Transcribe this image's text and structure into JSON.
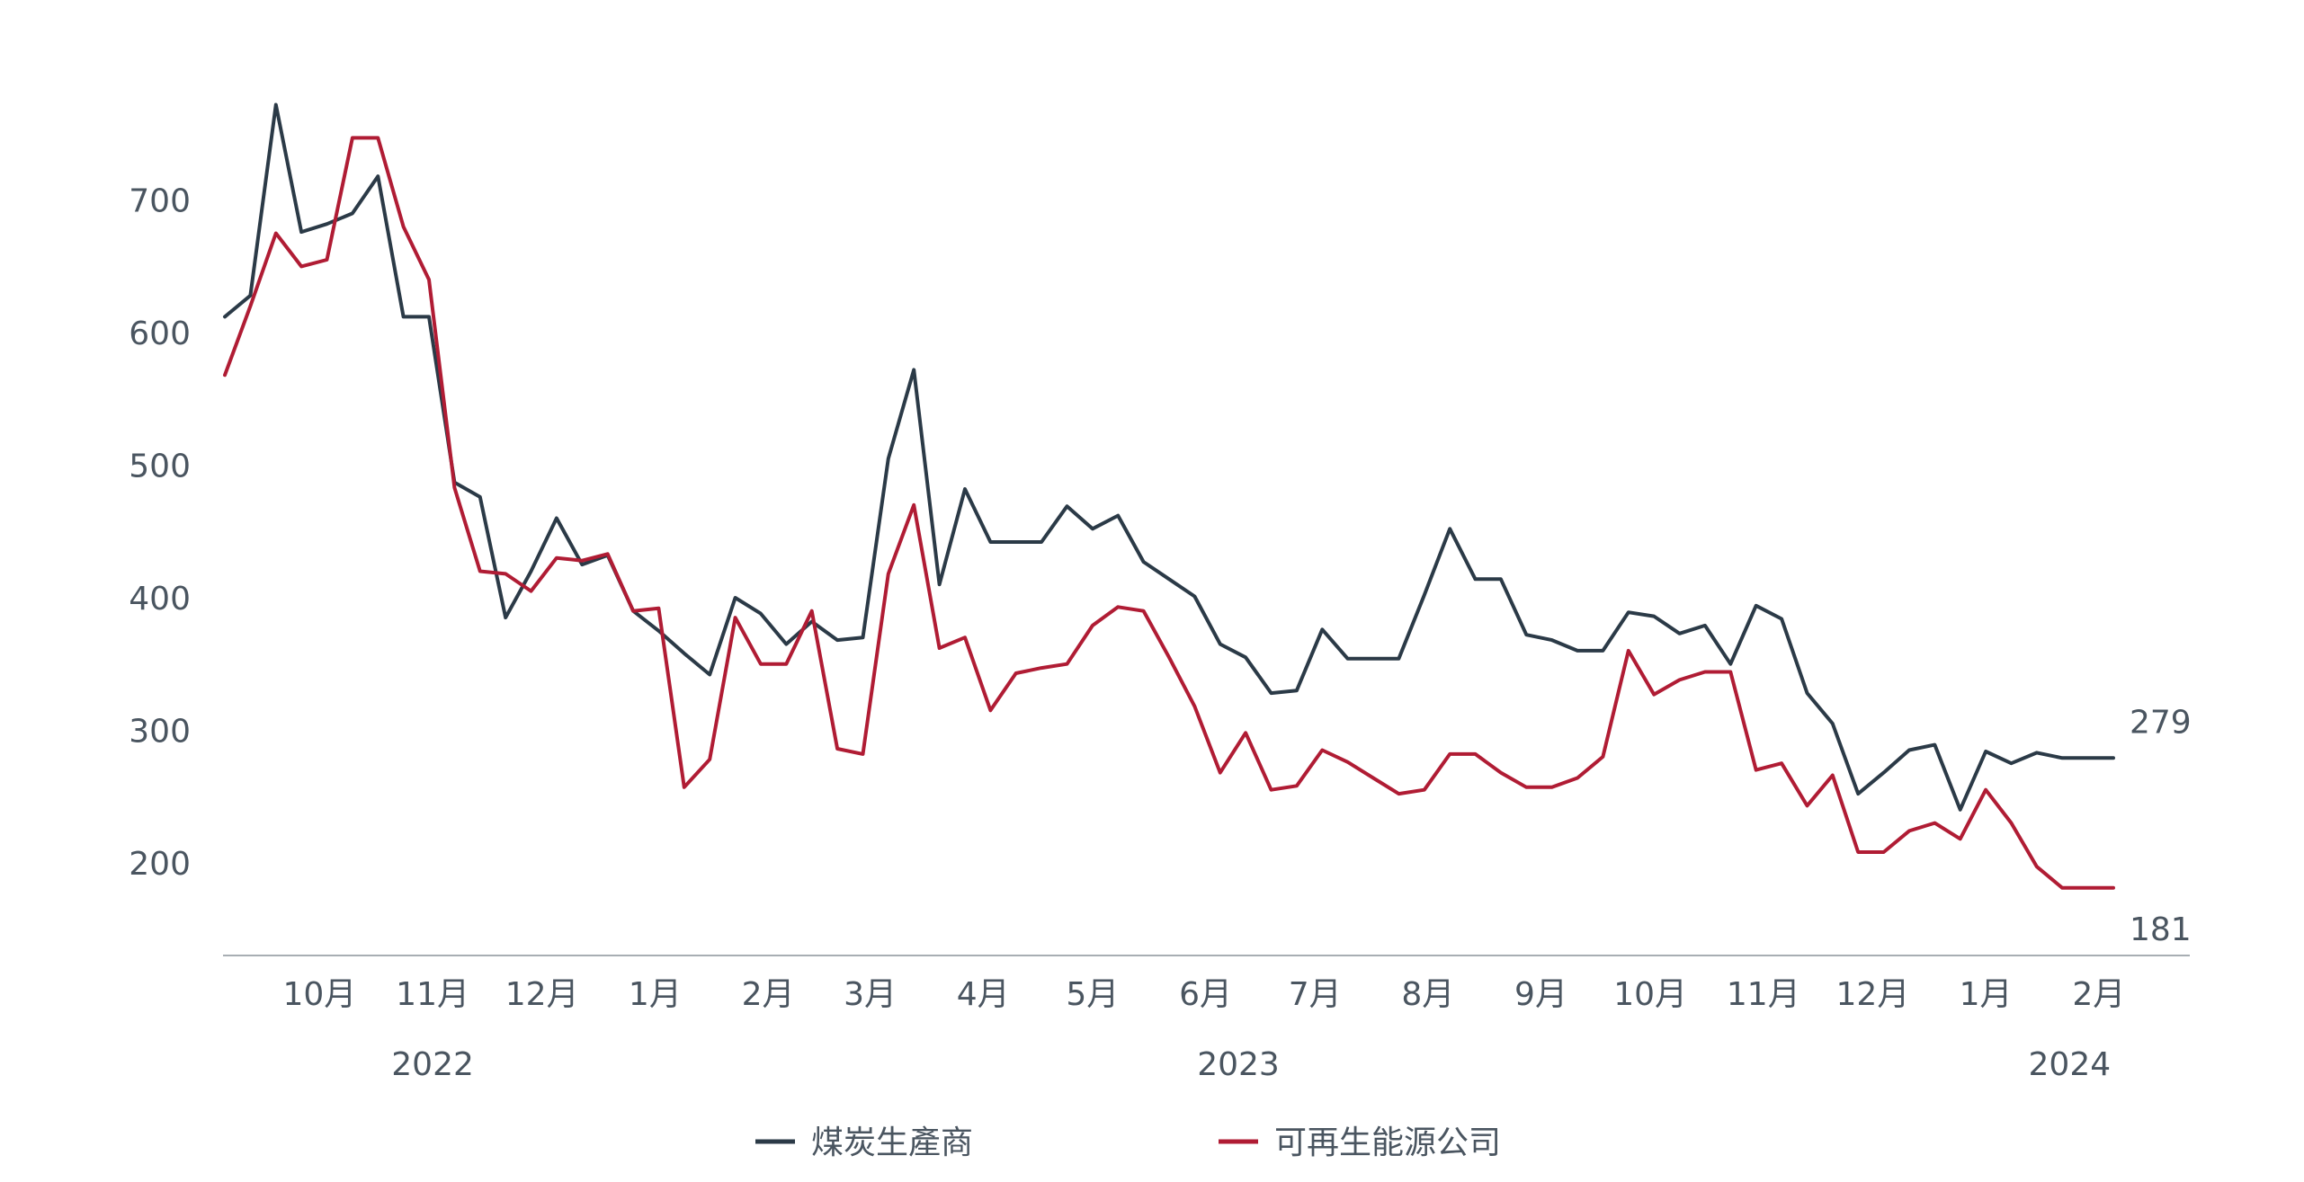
{
  "chart_data": {
    "type": "line",
    "title": "",
    "xlabel": "",
    "ylabel": "",
    "ylim": [
      130,
      790
    ],
    "yticks": [
      200,
      300,
      400,
      500,
      600,
      700
    ],
    "grid": false,
    "legend_position": "bottom",
    "x": [
      "2022-09-05",
      "2022-09-12",
      "2022-09-19",
      "2022-09-26",
      "2022-10-03",
      "2022-10-10",
      "2022-10-17",
      "2022-10-24",
      "2022-10-31",
      "2022-11-07",
      "2022-11-14",
      "2022-11-21",
      "2022-11-28",
      "2022-12-05",
      "2022-12-12",
      "2022-12-19",
      "2022-12-26",
      "2023-01-02",
      "2023-01-09",
      "2023-01-16",
      "2023-01-23",
      "2023-01-30",
      "2023-02-06",
      "2023-02-13",
      "2023-02-20",
      "2023-02-27",
      "2023-03-06",
      "2023-03-13",
      "2023-03-20",
      "2023-03-27",
      "2023-04-03",
      "2023-04-10",
      "2023-04-17",
      "2023-04-24",
      "2023-05-01",
      "2023-05-08",
      "2023-05-15",
      "2023-05-22",
      "2023-05-29",
      "2023-06-05",
      "2023-06-12",
      "2023-06-19",
      "2023-06-26",
      "2023-07-03",
      "2023-07-10",
      "2023-07-17",
      "2023-07-24",
      "2023-07-31",
      "2023-08-07",
      "2023-08-14",
      "2023-08-21",
      "2023-08-28",
      "2023-09-04",
      "2023-09-11",
      "2023-09-18",
      "2023-09-25",
      "2023-10-02",
      "2023-10-09",
      "2023-10-16",
      "2023-10-23",
      "2023-10-30",
      "2023-11-06",
      "2023-11-13",
      "2023-11-20",
      "2023-11-27",
      "2023-12-04",
      "2023-12-11",
      "2023-12-18",
      "2023-12-25",
      "2024-01-01",
      "2024-01-08",
      "2024-01-15",
      "2024-01-22",
      "2024-01-29",
      "2024-02-05"
    ],
    "series": [
      {
        "name": "煤炭生產商",
        "color": "#2b3a47",
        "values": [
          612,
          628,
          772,
          676,
          682,
          690,
          718,
          612,
          612,
          487,
          476,
          385,
          420,
          460,
          425,
          432,
          390,
          375,
          358,
          342,
          400,
          388,
          365,
          382,
          368,
          370,
          505,
          572,
          410,
          482,
          442,
          442,
          442,
          469,
          452,
          462,
          427,
          414,
          401,
          365,
          355,
          328,
          330,
          376,
          354,
          354,
          354,
          402,
          452,
          414,
          414,
          372,
          368,
          360,
          360,
          389,
          386,
          373,
          379,
          350,
          394,
          384,
          328,
          305,
          252,
          268,
          285,
          289,
          240,
          284,
          275,
          283,
          279,
          279,
          279
        ]
      },
      {
        "name": "可再生能源公司",
        "color": "#b01c34",
        "values": [
          568,
          620,
          675,
          650,
          655,
          747,
          747,
          680,
          640,
          483,
          420,
          418,
          405,
          430,
          428,
          433,
          390,
          392,
          257,
          278,
          385,
          350,
          350,
          390,
          286,
          282,
          418,
          470,
          362,
          370,
          315,
          343,
          347,
          350,
          379,
          393,
          390,
          355,
          318,
          268,
          298,
          255,
          258,
          285,
          276,
          264,
          252,
          255,
          282,
          282,
          268,
          257,
          257,
          264,
          280,
          360,
          327,
          338,
          344,
          344,
          270,
          275,
          243,
          266,
          208,
          208,
          224,
          230,
          218,
          255,
          230,
          197,
          181,
          181,
          181
        ]
      }
    ],
    "month_labels": [
      {
        "label": "10月",
        "x": "2022-10-01"
      },
      {
        "label": "11月",
        "x": "2022-11-01"
      },
      {
        "label": "12月",
        "x": "2022-12-01"
      },
      {
        "label": "1月",
        "x": "2023-01-01"
      },
      {
        "label": "2月",
        "x": "2023-02-01"
      },
      {
        "label": "3月",
        "x": "2023-03-01"
      },
      {
        "label": "4月",
        "x": "2023-04-01"
      },
      {
        "label": "5月",
        "x": "2023-05-01"
      },
      {
        "label": "6月",
        "x": "2023-06-01"
      },
      {
        "label": "7月",
        "x": "2023-07-01"
      },
      {
        "label": "8月",
        "x": "2023-08-01"
      },
      {
        "label": "9月",
        "x": "2023-09-01"
      },
      {
        "label": "10月",
        "x": "2023-10-01"
      },
      {
        "label": "11月",
        "x": "2023-11-01"
      },
      {
        "label": "12月",
        "x": "2023-12-01"
      },
      {
        "label": "1月",
        "x": "2024-01-01"
      },
      {
        "label": "2月",
        "x": "2024-02-01"
      }
    ],
    "year_labels": [
      {
        "label": "2022",
        "x": "2022-11-01"
      },
      {
        "label": "2023",
        "x": "2023-06-10"
      },
      {
        "label": "2024",
        "x": "2024-01-24"
      }
    ],
    "end_labels": [
      {
        "series": 0,
        "text": "279"
      },
      {
        "series": 1,
        "text": "181"
      }
    ]
  }
}
